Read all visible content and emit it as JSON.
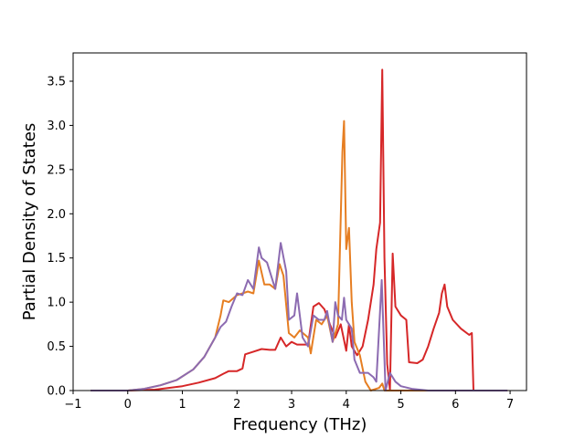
{
  "chart_data": {
    "type": "line",
    "title": "",
    "xlabel": "Frequency (THz)",
    "ylabel": "Partial Density of States",
    "xlim": [
      -1.0,
      7.3
    ],
    "ylim": [
      0.0,
      3.82
    ],
    "xticks": [
      -1,
      0,
      1,
      2,
      3,
      4,
      5,
      6,
      7
    ],
    "xtick_labels": [
      "−1",
      "0",
      "1",
      "2",
      "3",
      "4",
      "5",
      "6",
      "7"
    ],
    "yticks": [
      0.0,
      0.5,
      1.0,
      1.5,
      2.0,
      2.5,
      3.0,
      3.5
    ],
    "ytick_labels": [
      "0.0",
      "0.5",
      "1.0",
      "1.5",
      "2.0",
      "2.5",
      "3.0",
      "3.5"
    ],
    "grid": false,
    "legend": "none",
    "series": [
      {
        "color": "#d62728",
        "points": [
          [
            -0.68,
            0.0
          ],
          [
            0.0,
            0.0
          ],
          [
            0.5,
            0.01
          ],
          [
            1.0,
            0.05
          ],
          [
            1.3,
            0.09
          ],
          [
            1.6,
            0.14
          ],
          [
            1.75,
            0.19
          ],
          [
            1.85,
            0.22
          ],
          [
            2.0,
            0.22
          ],
          [
            2.1,
            0.25
          ],
          [
            2.15,
            0.41
          ],
          [
            2.3,
            0.44
          ],
          [
            2.45,
            0.47
          ],
          [
            2.6,
            0.46
          ],
          [
            2.7,
            0.46
          ],
          [
            2.8,
            0.6
          ],
          [
            2.9,
            0.5
          ],
          [
            3.0,
            0.55
          ],
          [
            3.1,
            0.52
          ],
          [
            3.3,
            0.52
          ],
          [
            3.4,
            0.95
          ],
          [
            3.5,
            0.99
          ],
          [
            3.6,
            0.92
          ],
          [
            3.7,
            0.75
          ],
          [
            3.8,
            0.6
          ],
          [
            3.9,
            0.75
          ],
          [
            4.0,
            0.45
          ],
          [
            4.05,
            0.75
          ],
          [
            4.1,
            0.5
          ],
          [
            4.2,
            0.4
          ],
          [
            4.3,
            0.5
          ],
          [
            4.4,
            0.8
          ],
          [
            4.5,
            1.2
          ],
          [
            4.55,
            1.6
          ],
          [
            4.62,
            1.9
          ],
          [
            4.66,
            3.63
          ],
          [
            4.7,
            1.5
          ],
          [
            4.75,
            0.3
          ],
          [
            4.8,
            0.01
          ],
          [
            4.85,
            1.55
          ],
          [
            4.9,
            0.95
          ],
          [
            5.0,
            0.85
          ],
          [
            5.1,
            0.8
          ],
          [
            5.15,
            0.32
          ],
          [
            5.3,
            0.31
          ],
          [
            5.4,
            0.35
          ],
          [
            5.5,
            0.5
          ],
          [
            5.6,
            0.7
          ],
          [
            5.7,
            0.88
          ],
          [
            5.75,
            1.1
          ],
          [
            5.8,
            1.2
          ],
          [
            5.85,
            0.95
          ],
          [
            5.95,
            0.8
          ],
          [
            6.1,
            0.7
          ],
          [
            6.25,
            0.63
          ],
          [
            6.3,
            0.65
          ],
          [
            6.33,
            0.0
          ],
          [
            6.95,
            0.0
          ]
        ]
      },
      {
        "color": "#e67e22",
        "points": [
          [
            -0.68,
            0.0
          ],
          [
            0.0,
            0.0
          ],
          [
            0.3,
            0.02
          ],
          [
            0.6,
            0.06
          ],
          [
            0.9,
            0.12
          ],
          [
            1.2,
            0.24
          ],
          [
            1.4,
            0.38
          ],
          [
            1.6,
            0.6
          ],
          [
            1.7,
            0.85
          ],
          [
            1.75,
            1.02
          ],
          [
            1.85,
            1.0
          ],
          [
            2.0,
            1.08
          ],
          [
            2.1,
            1.1
          ],
          [
            2.2,
            1.12
          ],
          [
            2.3,
            1.1
          ],
          [
            2.4,
            1.47
          ],
          [
            2.5,
            1.2
          ],
          [
            2.6,
            1.2
          ],
          [
            2.7,
            1.15
          ],
          [
            2.78,
            1.43
          ],
          [
            2.85,
            1.3
          ],
          [
            2.95,
            0.65
          ],
          [
            3.05,
            0.6
          ],
          [
            3.15,
            0.68
          ],
          [
            3.3,
            0.6
          ],
          [
            3.35,
            0.42
          ],
          [
            3.45,
            0.8
          ],
          [
            3.55,
            0.75
          ],
          [
            3.65,
            0.85
          ],
          [
            3.75,
            0.55
          ],
          [
            3.85,
            0.75
          ],
          [
            3.93,
            2.7
          ],
          [
            3.96,
            3.05
          ],
          [
            4.0,
            1.6
          ],
          [
            4.05,
            1.84
          ],
          [
            4.1,
            1.0
          ],
          [
            4.15,
            0.55
          ],
          [
            4.25,
            0.4
          ],
          [
            4.35,
            0.1
          ],
          [
            4.45,
            0.0
          ],
          [
            4.6,
            0.03
          ],
          [
            4.66,
            0.08
          ],
          [
            4.7,
            0.0
          ],
          [
            6.95,
            0.0
          ]
        ]
      },
      {
        "color": "#8c6bb1",
        "points": [
          [
            -0.68,
            0.0
          ],
          [
            0.0,
            0.0
          ],
          [
            0.3,
            0.02
          ],
          [
            0.6,
            0.06
          ],
          [
            0.9,
            0.12
          ],
          [
            1.2,
            0.24
          ],
          [
            1.4,
            0.38
          ],
          [
            1.6,
            0.6
          ],
          [
            1.7,
            0.72
          ],
          [
            1.8,
            0.78
          ],
          [
            1.9,
            0.95
          ],
          [
            2.0,
            1.1
          ],
          [
            2.1,
            1.08
          ],
          [
            2.2,
            1.25
          ],
          [
            2.3,
            1.15
          ],
          [
            2.4,
            1.62
          ],
          [
            2.45,
            1.5
          ],
          [
            2.55,
            1.45
          ],
          [
            2.7,
            1.15
          ],
          [
            2.8,
            1.67
          ],
          [
            2.9,
            1.35
          ],
          [
            2.95,
            0.8
          ],
          [
            3.05,
            0.85
          ],
          [
            3.1,
            1.1
          ],
          [
            3.2,
            0.6
          ],
          [
            3.3,
            0.5
          ],
          [
            3.4,
            0.85
          ],
          [
            3.5,
            0.8
          ],
          [
            3.6,
            0.8
          ],
          [
            3.65,
            0.9
          ],
          [
            3.75,
            0.55
          ],
          [
            3.8,
            1.0
          ],
          [
            3.85,
            0.85
          ],
          [
            3.92,
            0.8
          ],
          [
            3.96,
            1.05
          ],
          [
            4.0,
            0.8
          ],
          [
            4.1,
            0.7
          ],
          [
            4.15,
            0.35
          ],
          [
            4.25,
            0.2
          ],
          [
            4.4,
            0.2
          ],
          [
            4.5,
            0.15
          ],
          [
            4.55,
            0.1
          ],
          [
            4.65,
            1.25
          ],
          [
            4.72,
            0.0
          ],
          [
            4.8,
            0.2
          ],
          [
            4.9,
            0.1
          ],
          [
            5.0,
            0.05
          ],
          [
            5.2,
            0.02
          ],
          [
            5.5,
            0.0
          ],
          [
            6.95,
            0.0
          ]
        ]
      }
    ]
  }
}
